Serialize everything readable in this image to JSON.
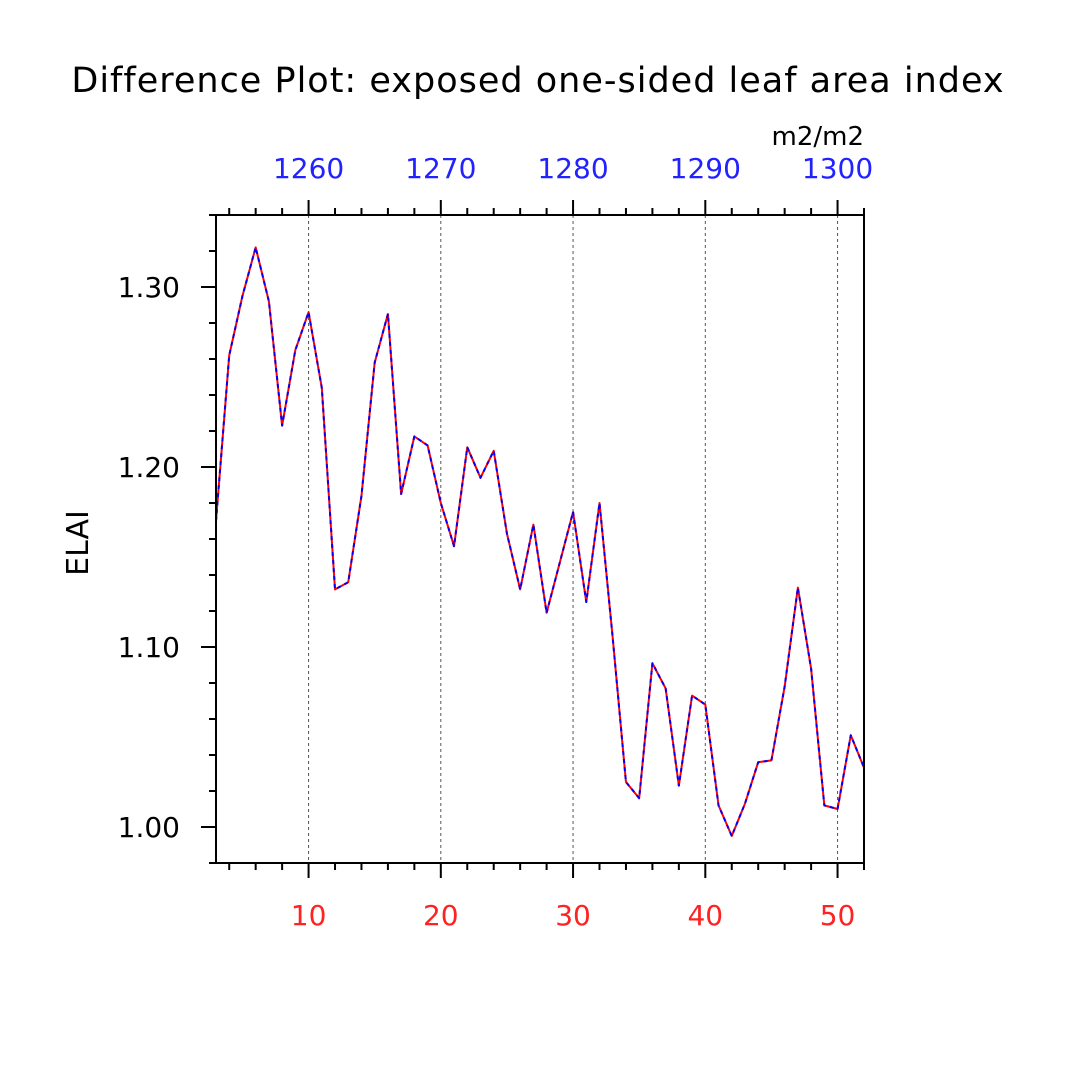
{
  "chart_data": {
    "type": "line",
    "title": "Difference Plot: exposed one-sided leaf area index",
    "units": "m2/m2",
    "ylabel": "ELAI",
    "xlabel": "",
    "xlim": [
      3,
      52
    ],
    "ylim": [
      0.98,
      1.34
    ],
    "x_ticks": [
      10,
      20,
      30,
      40,
      50
    ],
    "y_ticks": [
      1.0,
      1.1,
      1.2,
      1.3
    ],
    "y_tick_labels": [
      "1.00",
      "1.10",
      "1.20",
      "1.30"
    ],
    "top_axis": {
      "ticks": [
        1260,
        1270,
        1280,
        1290,
        1300
      ],
      "offset": 1250,
      "color": "#2222ff"
    },
    "bottom_tick_color": "#ff2222",
    "grid": "vertical dashed at major ticks",
    "series": [
      {
        "color": "#ff0000",
        "style": "solid",
        "x": [
          3,
          4,
          5,
          6,
          7,
          8,
          9,
          10,
          11,
          12,
          13,
          14,
          15,
          16,
          17,
          18,
          19,
          20,
          21,
          22,
          23,
          24,
          25,
          26,
          27,
          28,
          29,
          30,
          31,
          32,
          33,
          34,
          35,
          36,
          37,
          38,
          39,
          40,
          41,
          42,
          43,
          44,
          45,
          46,
          47,
          48,
          49,
          50,
          51,
          52
        ],
        "y": [
          1.17,
          1.262,
          1.295,
          1.322,
          1.292,
          1.223,
          1.265,
          1.286,
          1.244,
          1.132,
          1.136,
          1.184,
          1.258,
          1.285,
          1.185,
          1.217,
          1.212,
          1.18,
          1.156,
          1.211,
          1.194,
          1.209,
          1.163,
          1.132,
          1.168,
          1.119,
          1.147,
          1.175,
          1.125,
          1.18,
          1.105,
          1.025,
          1.016,
          1.091,
          1.077,
          1.023,
          1.073,
          1.068,
          1.012,
          0.995,
          1.013,
          1.036,
          1.037,
          1.078,
          1.133,
          1.088,
          1.012,
          1.01,
          1.051,
          1.033
        ]
      },
      {
        "color": "#0000ff",
        "style": "dashed",
        "x": [
          3,
          4,
          5,
          6,
          7,
          8,
          9,
          10,
          11,
          12,
          13,
          14,
          15,
          16,
          17,
          18,
          19,
          20,
          21,
          22,
          23,
          24,
          25,
          26,
          27,
          28,
          29,
          30,
          31,
          32,
          33,
          34,
          35,
          36,
          37,
          38,
          39,
          40,
          41,
          42,
          43,
          44,
          45,
          46,
          47,
          48,
          49,
          50,
          51,
          52
        ],
        "y": [
          1.17,
          1.262,
          1.295,
          1.322,
          1.292,
          1.223,
          1.265,
          1.286,
          1.244,
          1.132,
          1.136,
          1.184,
          1.258,
          1.285,
          1.185,
          1.217,
          1.212,
          1.18,
          1.156,
          1.211,
          1.194,
          1.209,
          1.163,
          1.132,
          1.168,
          1.119,
          1.147,
          1.175,
          1.125,
          1.18,
          1.105,
          1.025,
          1.016,
          1.091,
          1.077,
          1.023,
          1.073,
          1.068,
          1.012,
          0.995,
          1.013,
          1.036,
          1.037,
          1.078,
          1.133,
          1.088,
          1.012,
          1.01,
          1.051,
          1.033
        ]
      }
    ]
  }
}
